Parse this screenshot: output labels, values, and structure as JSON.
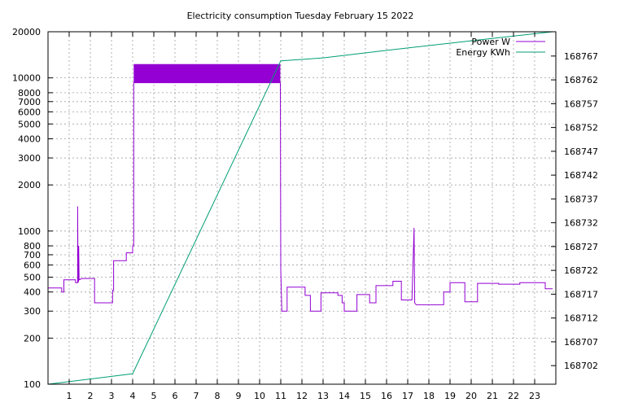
{
  "chart_data": {
    "type": "line",
    "title": "Electricity consumption Tuesday February 15 2022",
    "xlim": [
      0,
      24
    ],
    "x_ticks": [
      1,
      2,
      3,
      4,
      5,
      6,
      7,
      8,
      9,
      10,
      11,
      12,
      13,
      14,
      15,
      16,
      17,
      18,
      19,
      20,
      21,
      22,
      23
    ],
    "y_left": {
      "scale": "log",
      "lim": [
        100,
        20000
      ],
      "ticks": [
        100,
        200,
        300,
        400,
        500,
        600,
        700,
        800,
        1000,
        2000,
        3000,
        4000,
        5000,
        6000,
        7000,
        8000,
        10000,
        20000
      ],
      "tick_labels": [
        "100",
        "200",
        "300",
        "400",
        "500",
        "600",
        "700",
        "800",
        "1000",
        "2000",
        "3000",
        "4000",
        "5000",
        "6000",
        "7000",
        "8000",
        "10000",
        "20000"
      ]
    },
    "y_right": {
      "scale": "linear",
      "lim": [
        168698.1,
        168772.1
      ],
      "ticks": [
        168702,
        168707,
        168712,
        168717,
        168722,
        168727,
        168732,
        168737,
        168742,
        168747,
        168752,
        168757,
        168762,
        168767
      ],
      "tick_labels": [
        "168702",
        "168707",
        "168712",
        "168717",
        "168722",
        "168727",
        "168732",
        "168737",
        "168742",
        "168747",
        "168752",
        "168757",
        "168762",
        "168767"
      ]
    },
    "grid": true,
    "legend_position": "top-right",
    "series": [
      {
        "name": "Power W",
        "axis": "left",
        "color": "#9400d3",
        "values": [
          [
            0.0,
            425
          ],
          [
            0.65,
            425
          ],
          [
            0.65,
            400
          ],
          [
            0.75,
            400
          ],
          [
            0.75,
            480
          ],
          [
            1.3,
            480
          ],
          [
            1.3,
            460
          ],
          [
            1.4,
            460
          ],
          [
            1.4,
            1450
          ],
          [
            1.42,
            460
          ],
          [
            1.45,
            480
          ],
          [
            1.45,
            800
          ],
          [
            1.47,
            480
          ],
          [
            1.6,
            490
          ],
          [
            2.2,
            490
          ],
          [
            2.2,
            340
          ],
          [
            3.05,
            340
          ],
          [
            3.05,
            410
          ],
          [
            3.1,
            410
          ],
          [
            3.1,
            640
          ],
          [
            3.7,
            640
          ],
          [
            3.7,
            720
          ],
          [
            4.0,
            720
          ],
          [
            4.0,
            800
          ],
          [
            4.05,
            800
          ],
          [
            4.05,
            9300
          ],
          [
            10.98,
            9300
          ],
          [
            11.0,
            560
          ],
          [
            11.05,
            300
          ],
          [
            11.3,
            300
          ],
          [
            11.3,
            430
          ],
          [
            12.15,
            430
          ],
          [
            12.15,
            380
          ],
          [
            12.4,
            380
          ],
          [
            12.4,
            300
          ],
          [
            12.9,
            300
          ],
          [
            12.9,
            395
          ],
          [
            13.7,
            395
          ],
          [
            13.7,
            380
          ],
          [
            13.9,
            380
          ],
          [
            13.9,
            340
          ],
          [
            14.0,
            340
          ],
          [
            14.0,
            300
          ],
          [
            14.6,
            300
          ],
          [
            14.6,
            385
          ],
          [
            15.2,
            385
          ],
          [
            15.2,
            340
          ],
          [
            15.5,
            340
          ],
          [
            15.5,
            440
          ],
          [
            16.3,
            440
          ],
          [
            16.3,
            470
          ],
          [
            16.7,
            470
          ],
          [
            16.7,
            355
          ],
          [
            17.2,
            355
          ],
          [
            17.3,
            1050
          ],
          [
            17.33,
            340
          ],
          [
            17.4,
            330
          ],
          [
            18.7,
            330
          ],
          [
            18.7,
            400
          ],
          [
            19.0,
            400
          ],
          [
            19.0,
            460
          ],
          [
            19.7,
            460
          ],
          [
            19.7,
            345
          ],
          [
            20.3,
            345
          ],
          [
            20.3,
            455
          ],
          [
            21.3,
            455
          ],
          [
            21.3,
            450
          ],
          [
            22.3,
            450
          ],
          [
            22.3,
            460
          ],
          [
            23.5,
            460
          ],
          [
            23.5,
            420
          ],
          [
            23.85,
            420
          ]
        ]
      },
      {
        "name": "Energy KWh",
        "axis": "right",
        "color": "#009e73",
        "values": [
          [
            0.0,
            168698.1
          ],
          [
            4.0,
            168700.3
          ],
          [
            11.0,
            168766.0
          ],
          [
            13.0,
            168766.6
          ],
          [
            16.0,
            168768.2
          ],
          [
            20.0,
            168770.2
          ],
          [
            23.85,
            168772.1
          ]
        ]
      }
    ],
    "fill_band": {
      "series": "Power W",
      "x": [
        4.05,
        10.98
      ],
      "y": [
        9300,
        12300
      ],
      "color": "#9400d3"
    }
  }
}
